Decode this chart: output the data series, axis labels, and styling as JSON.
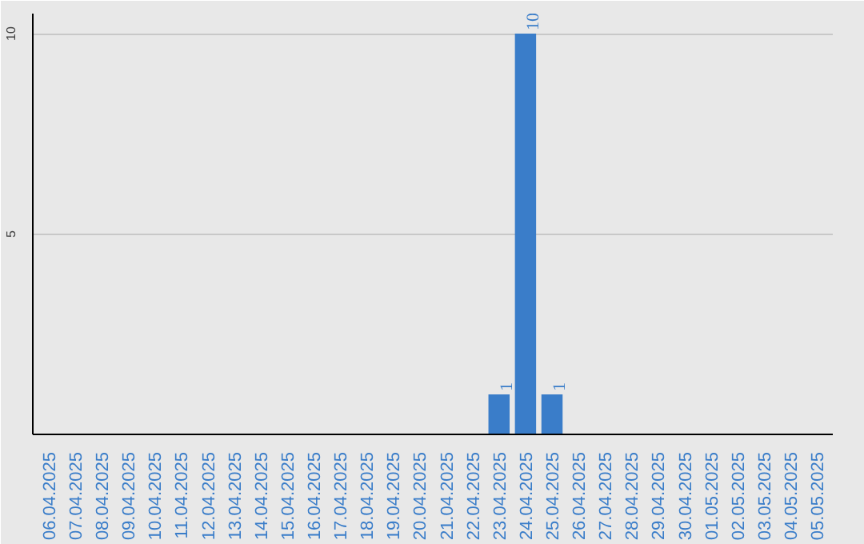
{
  "chart_data": {
    "type": "bar",
    "categories": [
      "06.04.2025",
      "07.04.2025",
      "08.04.2025",
      "09.04.2025",
      "10.04.2025",
      "11.04.2025",
      "12.04.2025",
      "13.04.2025",
      "14.04.2025",
      "15.04.2025",
      "16.04.2025",
      "17.04.2025",
      "18.04.2025",
      "19.04.2025",
      "20.04.2025",
      "21.04.2025",
      "22.04.2025",
      "23.04.2025",
      "24.04.2025",
      "25.04.2025",
      "26.04.2025",
      "27.04.2025",
      "28.04.2025",
      "29.04.2025",
      "30.04.2025",
      "01.05.2025",
      "02.05.2025",
      "03.05.2025",
      "04.05.2025",
      "05.05.2025"
    ],
    "values": [
      0,
      0,
      0,
      0,
      0,
      0,
      0,
      0,
      0,
      0,
      0,
      0,
      0,
      0,
      0,
      0,
      0,
      1,
      10,
      1,
      0,
      0,
      0,
      0,
      0,
      0,
      0,
      0,
      0,
      0
    ],
    "value_labels": [
      null,
      null,
      null,
      null,
      null,
      null,
      null,
      null,
      null,
      null,
      null,
      null,
      null,
      null,
      null,
      null,
      null,
      "1",
      "10",
      "1",
      null,
      null,
      null,
      null,
      null,
      null,
      null,
      null,
      null,
      null
    ],
    "color": "#3a7dc9",
    "ylim": [
      0,
      10.5
    ],
    "yticks": [
      5,
      10
    ],
    "grid": "y"
  }
}
